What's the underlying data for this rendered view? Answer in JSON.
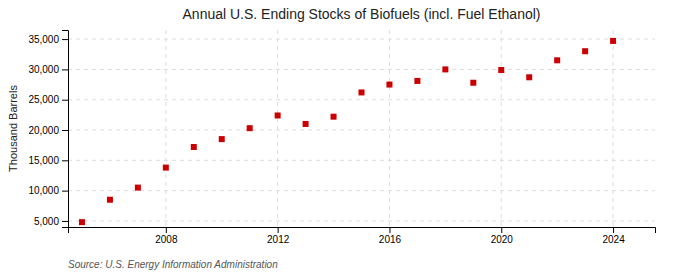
{
  "chart_data": {
    "type": "scatter",
    "title": "Annual U.S. Ending Stocks of Biofuels (incl. Fuel Ethanol)",
    "ylabel": "Thousand Barrels",
    "annotation": "Source: U.S. Energy Information Administration",
    "x": [
      2005,
      2006,
      2007,
      2008,
      2009,
      2010,
      2011,
      2012,
      2013,
      2014,
      2015,
      2016,
      2017,
      2018,
      2019,
      2020,
      2021,
      2022,
      2023,
      2024
    ],
    "values": [
      4800,
      8500,
      10500,
      13800,
      17200,
      18500,
      20300,
      22400,
      21000,
      22200,
      26200,
      27500,
      28100,
      30000,
      27800,
      29900,
      28700,
      31500,
      33000,
      34700
    ],
    "color": "#cc0000",
    "marker": "square",
    "xlim": [
      2004.5,
      2025.5
    ],
    "xticks": [
      2008,
      2012,
      2016,
      2020,
      2024
    ],
    "ylim": [
      4000,
      36500
    ],
    "yticks": [
      {
        "value": 5000,
        "label": "5,000"
      },
      {
        "value": 10000,
        "label": "10,000"
      },
      {
        "value": 15000,
        "label": "15,000"
      },
      {
        "value": 20000,
        "label": "20,000"
      },
      {
        "value": 25000,
        "label": "25,000"
      },
      {
        "value": 30000,
        "label": "30,000"
      },
      {
        "value": 35000,
        "label": "35,000"
      }
    ],
    "grid": true
  }
}
